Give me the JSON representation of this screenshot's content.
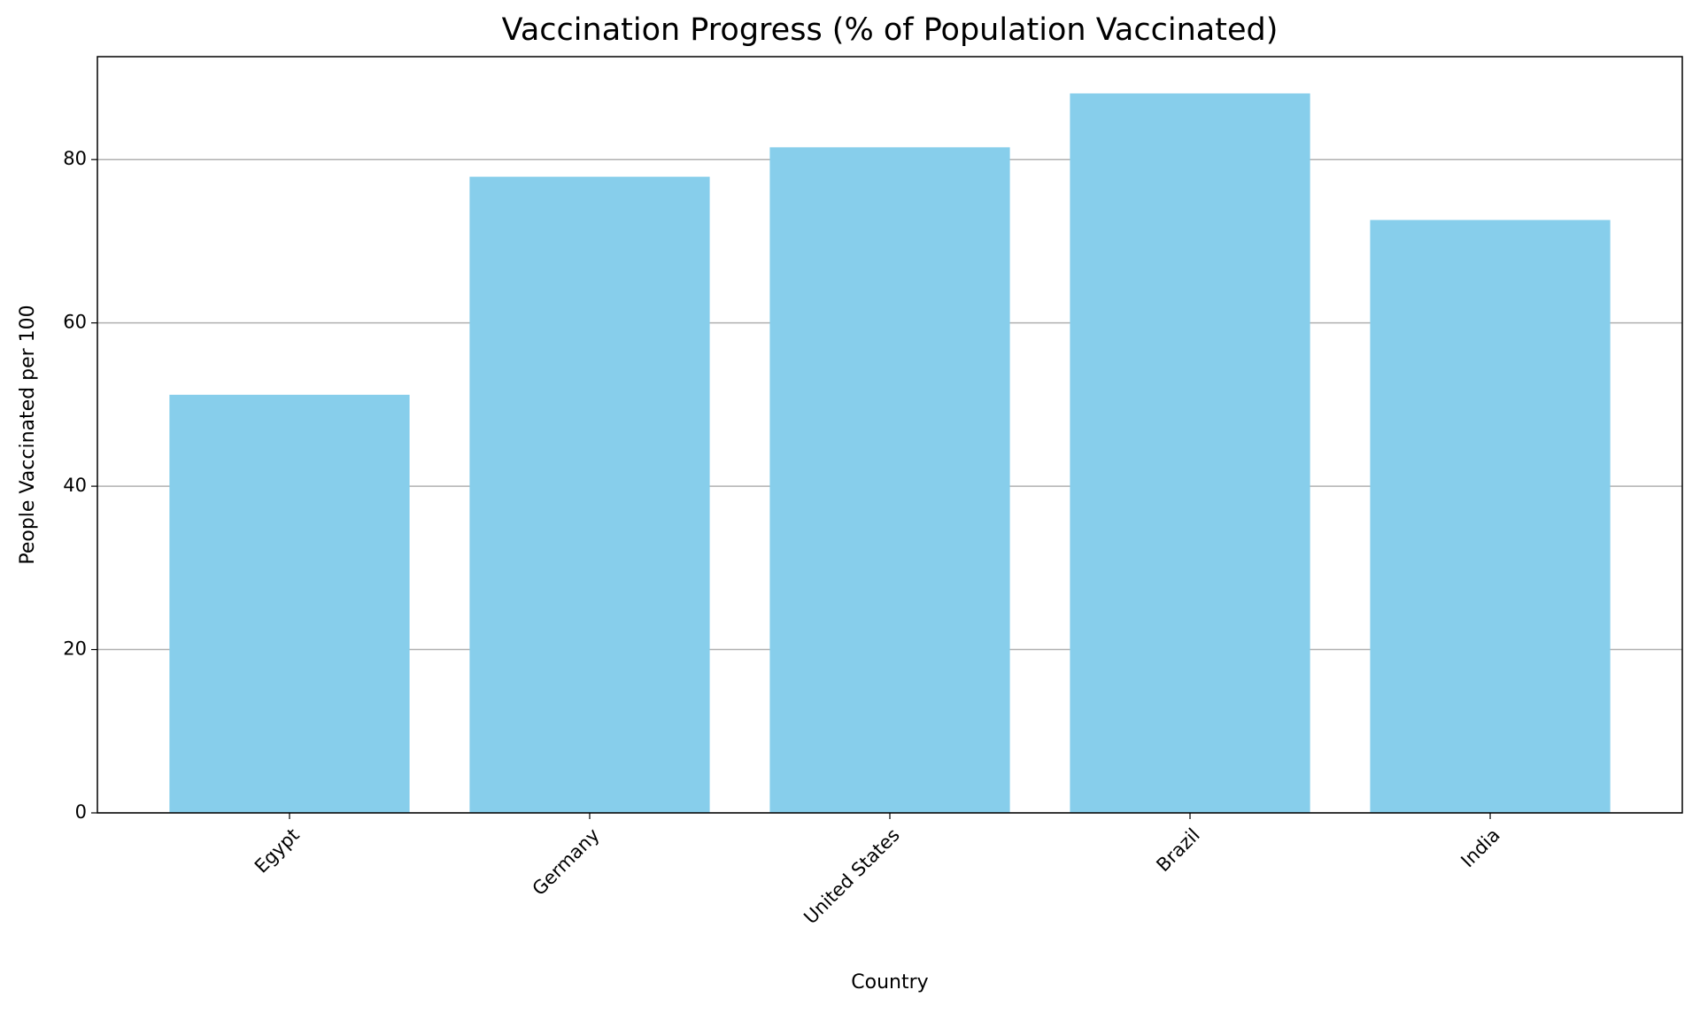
{
  "chart_data": {
    "type": "bar",
    "title": "Vaccination Progress (% of Population Vaccinated)",
    "x_label": "Country",
    "y_label": "People Vaccinated per 100",
    "categories": [
      "Egypt",
      "Germany",
      "United States",
      "Brazil",
      "India"
    ],
    "values": [
      51.2,
      77.9,
      81.5,
      88.1,
      72.6
    ],
    "color": "#87ceeb",
    "ylim": [
      0,
      92.6
    ],
    "yticks": [
      0,
      20,
      40,
      60,
      80
    ],
    "grid": true
  }
}
